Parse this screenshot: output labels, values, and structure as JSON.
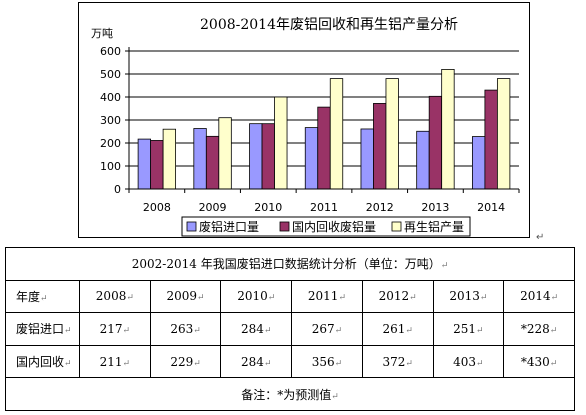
{
  "chart_data": {
    "type": "bar",
    "title": "2008-2014年废铝回收和再生铝产量分析",
    "ylabel": "万吨",
    "xlabel": "",
    "ylim": [
      0,
      600
    ],
    "yticks": [
      0,
      100,
      200,
      300,
      400,
      500,
      600
    ],
    "categories": [
      "2008",
      "2009",
      "2010",
      "2011",
      "2012",
      "2013",
      "2014"
    ],
    "grid": true,
    "legend_position": "bottom",
    "series": [
      {
        "name": "废铝进口量",
        "color": "#9999FF",
        "values": [
          217,
          263,
          284,
          267,
          261,
          251,
          228
        ]
      },
      {
        "name": "国内回收废铝量",
        "color": "#993366",
        "values": [
          211,
          229,
          284,
          356,
          372,
          403,
          430
        ]
      },
      {
        "name": "再生铝产量",
        "color": "#FFFFCC",
        "values": [
          260,
          310,
          400,
          480,
          480,
          520,
          480
        ]
      }
    ]
  },
  "table": {
    "title": "2002-2014 年我国废铝进口数据统计分析（单位：万吨）",
    "header_label": "年度",
    "years": [
      "2008",
      "2009",
      "2010",
      "2011",
      "2012",
      "2013",
      "2014"
    ],
    "rows": [
      {
        "label": "废铝进口",
        "values": [
          "217",
          "263",
          "284",
          "267",
          "261",
          "251",
          "*228"
        ]
      },
      {
        "label": "国内回收",
        "values": [
          "211",
          "229",
          "284",
          "356",
          "372",
          "403",
          "*430"
        ]
      }
    ],
    "note": "备注：*为预测值"
  },
  "marks": {
    "paragraph": "↵"
  }
}
